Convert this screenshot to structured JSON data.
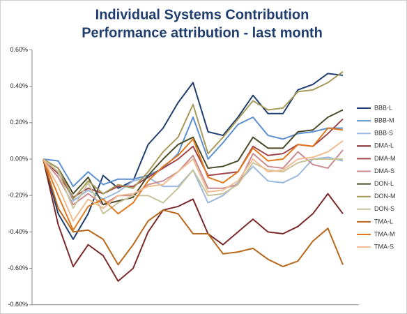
{
  "chart_data": {
    "type": "line",
    "title": "Individual Systems Contribution",
    "subtitle": "Performance attribution - last month",
    "ylim": [
      -0.8,
      0.6
    ],
    "yticks": [
      {
        "value": 0.6,
        "label": "0.60%"
      },
      {
        "value": 0.4,
        "label": "0.40%"
      },
      {
        "value": 0.2,
        "label": "0.20%"
      },
      {
        "value": 0,
        "label": "0.00%"
      },
      {
        "value": -0.2,
        "label": "-0.20%"
      },
      {
        "value": -0.4,
        "label": "-0.40%"
      },
      {
        "value": -0.6,
        "label": "-0.60%"
      },
      {
        "value": -0.8,
        "label": "-0.80%"
      }
    ],
    "grid": false,
    "legend": "right",
    "series": [
      {
        "name": "BBB-L",
        "color": "#1f3d6e",
        "values": [
          0,
          -0.3,
          -0.44,
          -0.3,
          -0.09,
          -0.16,
          -0.12,
          0.08,
          0.17,
          0.31,
          0.42,
          0.15,
          0.13,
          0.23,
          0.35,
          0.25,
          0.25,
          0.38,
          0.41,
          0.47,
          0.46
        ]
      },
      {
        "name": "BBB-M",
        "color": "#5b8fd0",
        "values": [
          0,
          -0.01,
          -0.15,
          -0.07,
          -0.14,
          -0.11,
          -0.11,
          -0.09,
          -0.05,
          0.03,
          0.23,
          0.0,
          0.09,
          0.19,
          0.23,
          0.13,
          0.11,
          0.14,
          0.15,
          0.17,
          0.17
        ]
      },
      {
        "name": "BBB-S",
        "color": "#9bb8e0",
        "values": [
          0,
          -0.05,
          -0.23,
          -0.17,
          -0.22,
          -0.18,
          -0.12,
          -0.1,
          -0.15,
          -0.15,
          -0.06,
          -0.24,
          -0.2,
          -0.13,
          -0.04,
          -0.12,
          -0.13,
          -0.09,
          0.0,
          0.01,
          -0.01
        ]
      },
      {
        "name": "DMA-L",
        "color": "#7a2a2a",
        "values": [
          0,
          -0.36,
          -0.59,
          -0.47,
          -0.53,
          -0.67,
          -0.6,
          -0.4,
          -0.28,
          -0.26,
          -0.22,
          -0.41,
          -0.47,
          -0.4,
          -0.33,
          -0.4,
          -0.41,
          -0.37,
          -0.3,
          -0.19,
          -0.3
        ]
      },
      {
        "name": "DMA-M",
        "color": "#a0454a",
        "values": [
          0,
          -0.08,
          -0.21,
          -0.16,
          -0.19,
          -0.15,
          -0.15,
          -0.1,
          -0.05,
          0.0,
          0.07,
          -0.09,
          -0.08,
          -0.07,
          0.07,
          0.02,
          0.03,
          0.08,
          0.07,
          0.14,
          0.22
        ]
      },
      {
        "name": "DMA-S",
        "color": "#c98a90",
        "values": [
          0,
          -0.1,
          -0.25,
          -0.19,
          -0.25,
          -0.2,
          -0.2,
          -0.14,
          -0.12,
          -0.07,
          0.02,
          -0.16,
          -0.16,
          -0.14,
          0.03,
          -0.04,
          -0.05,
          0.04,
          -0.03,
          -0.05,
          0.05
        ]
      },
      {
        "name": "DON-L",
        "color": "#4a4a28",
        "values": [
          0,
          -0.05,
          -0.19,
          -0.1,
          -0.25,
          -0.23,
          -0.21,
          -0.09,
          0.0,
          0.08,
          0.12,
          -0.05,
          -0.04,
          -0.01,
          0.12,
          0.06,
          0.06,
          0.15,
          0.16,
          0.23,
          0.27
        ]
      },
      {
        "name": "DON-M",
        "color": "#a89a5a",
        "values": [
          0,
          -0.05,
          -0.22,
          -0.12,
          -0.19,
          -0.14,
          -0.16,
          -0.07,
          0.04,
          0.12,
          0.3,
          0.03,
          0.12,
          0.22,
          0.32,
          0.27,
          0.28,
          0.37,
          0.38,
          0.42,
          0.48
        ]
      },
      {
        "name": "DON-S",
        "color": "#c8c49a",
        "values": [
          0,
          -0.07,
          -0.27,
          -0.13,
          -0.3,
          -0.24,
          -0.2,
          -0.2,
          -0.24,
          -0.16,
          -0.06,
          -0.2,
          -0.19,
          -0.14,
          -0.02,
          -0.06,
          -0.07,
          -0.02,
          0.0,
          0.0,
          0.0
        ]
      },
      {
        "name": "TMA-L",
        "color": "#b8681a",
        "values": [
          0,
          -0.27,
          -0.4,
          -0.39,
          -0.44,
          -0.58,
          -0.47,
          -0.34,
          -0.28,
          -0.3,
          -0.41,
          -0.41,
          -0.52,
          -0.51,
          -0.49,
          -0.55,
          -0.59,
          -0.56,
          -0.45,
          -0.38,
          -0.58
        ]
      },
      {
        "name": "TMA-M",
        "color": "#e07a20",
        "values": [
          0,
          -0.2,
          -0.39,
          -0.26,
          -0.22,
          -0.3,
          -0.24,
          -0.12,
          -0.04,
          0.02,
          0.11,
          -0.1,
          -0.13,
          -0.07,
          0.06,
          -0.01,
          0.0,
          0.08,
          0.07,
          0.17,
          0.16
        ]
      },
      {
        "name": "TMA-S",
        "color": "#f0bc90",
        "values": [
          0,
          -0.15,
          -0.34,
          -0.22,
          -0.27,
          -0.2,
          -0.19,
          -0.15,
          -0.14,
          -0.07,
          0.0,
          -0.18,
          -0.17,
          -0.12,
          0.0,
          -0.07,
          -0.06,
          0.0,
          0.01,
          0.04,
          0.1
        ]
      }
    ]
  }
}
